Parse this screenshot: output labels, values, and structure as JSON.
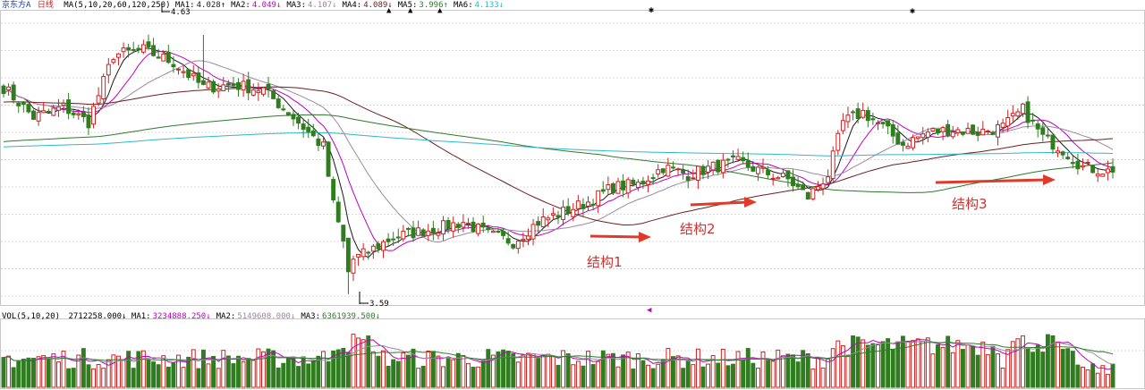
{
  "colors": {
    "up": "#cc2222",
    "down": "#2f7d1f",
    "ma5": "#1a1a1a",
    "ma10": "#c000c0",
    "ma20": "#9a8aa0",
    "ma60": "#6a2020",
    "ma120": "#2d7a2d",
    "ma250": "#30b8c8",
    "grid": "#d9d9d9",
    "arrow": "#e03a2a"
  },
  "header": {
    "stock_name": "京东方A",
    "period": "日线",
    "ma_params": "MA(5,10,20,60,120,250)",
    "ma_values": [
      {
        "label": "MA1:",
        "value": "4.028↑",
        "color": "#1a1a1a"
      },
      {
        "label": "MA2:",
        "value": "4.049↓",
        "color": "#c000c0"
      },
      {
        "label": "MA3:",
        "value": "4.107↓",
        "color": "#9a8aa0"
      },
      {
        "label": "MA4:",
        "value": "4.089↓",
        "color": "#6a2020"
      },
      {
        "label": "MA5:",
        "value": "3.996↑",
        "color": "#2d7a2d"
      },
      {
        "label": "MA6:",
        "value": "4.133↓",
        "color": "#30b8c8"
      }
    ]
  },
  "volume_header": {
    "params": "VOL(5,10,20)",
    "value": "2712258.000↓",
    "ma_values": [
      {
        "label": "MA1:",
        "value": "3234888.250↓",
        "color": "#c000c0"
      },
      {
        "label": "MA2:",
        "value": "5149608.000↓",
        "color": "#9a8aa0"
      },
      {
        "label": "MA3:",
        "value": "6361939.500↓",
        "color": "#2d7a2d"
      }
    ]
  },
  "annotations": {
    "high_label": "4.63",
    "low_label": "3.59",
    "structure_labels": [
      "结构1",
      "结构2",
      "结构3"
    ]
  },
  "chart_data": {
    "type": "candlestick",
    "price_range": [
      3.55,
      4.72
    ],
    "high": 4.63,
    "low": 3.59,
    "series_names": [
      "MA1",
      "MA2",
      "MA3",
      "MA4",
      "MA5",
      "MA6"
    ],
    "close_anchors": [
      [
        0,
        4.42
      ],
      [
        6,
        4.3
      ],
      [
        12,
        4.34
      ],
      [
        17,
        4.28
      ],
      [
        22,
        4.55
      ],
      [
        28,
        4.57
      ],
      [
        34,
        4.52
      ],
      [
        40,
        4.42
      ],
      [
        46,
        4.43
      ],
      [
        52,
        4.41
      ],
      [
        58,
        4.3
      ],
      [
        64,
        4.18
      ],
      [
        66,
        3.95
      ],
      [
        69,
        3.72
      ],
      [
        73,
        3.76
      ],
      [
        78,
        3.82
      ],
      [
        83,
        3.84
      ],
      [
        88,
        3.86
      ],
      [
        92,
        3.88
      ],
      [
        97,
        3.83
      ],
      [
        102,
        3.8
      ],
      [
        107,
        3.88
      ],
      [
        112,
        3.92
      ],
      [
        117,
        3.96
      ],
      [
        122,
        4.02
      ],
      [
        127,
        4.03
      ],
      [
        132,
        4.1
      ],
      [
        137,
        4.07
      ],
      [
        142,
        4.1
      ],
      [
        147,
        4.12
      ],
      [
        152,
        4.08
      ],
      [
        157,
        4.05
      ],
      [
        161,
        3.98
      ],
      [
        165,
        4.07
      ],
      [
        168,
        4.28
      ],
      [
        172,
        4.32
      ],
      [
        176,
        4.26
      ],
      [
        180,
        4.19
      ],
      [
        185,
        4.24
      ],
      [
        190,
        4.25
      ],
      [
        195,
        4.24
      ],
      [
        200,
        4.26
      ],
      [
        204,
        4.33
      ],
      [
        208,
        4.22
      ],
      [
        212,
        4.17
      ],
      [
        216,
        4.1
      ],
      [
        222,
        4.08
      ]
    ],
    "volume_range": [
      0,
      12500000
    ]
  }
}
